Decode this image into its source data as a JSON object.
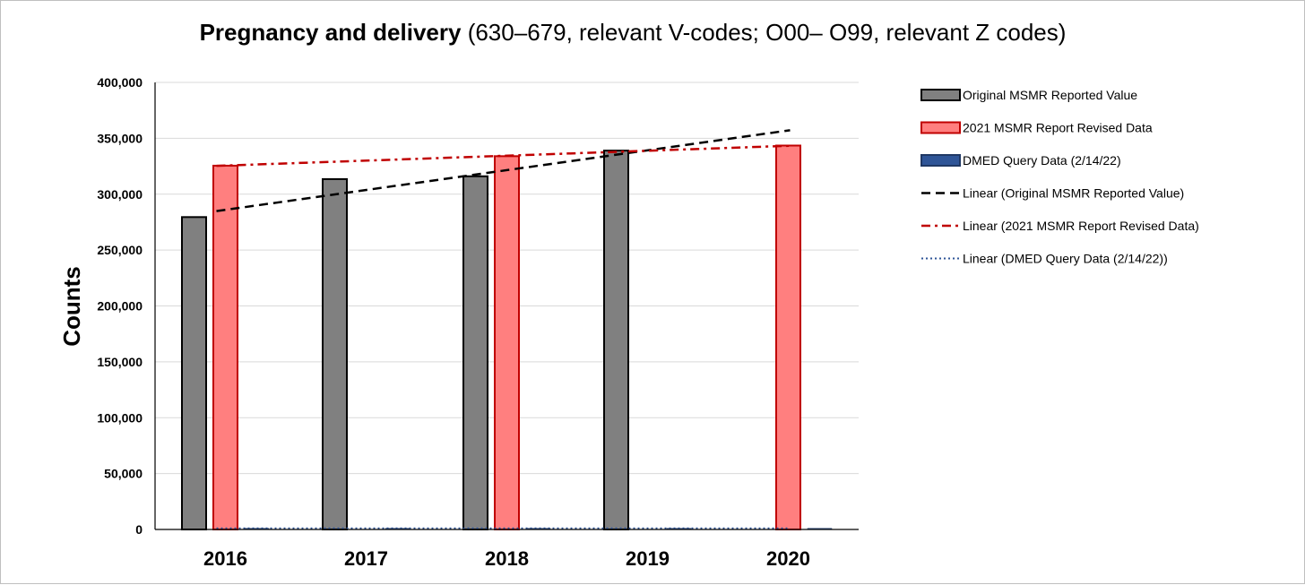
{
  "chart_data": {
    "type": "bar",
    "title_bold": "Pregnancy and delivery",
    "title_rest": " (630–679, relevant V-codes; O00– O99, relevant Z codes)",
    "ylabel": "Counts",
    "xlabel": "",
    "categories": [
      "2016",
      "2017",
      "2018",
      "2019",
      "2020"
    ],
    "ylim": [
      0,
      400000
    ],
    "yticks": [
      0,
      50000,
      100000,
      150000,
      200000,
      250000,
      300000,
      350000,
      400000
    ],
    "ytick_labels": [
      "0",
      "50,000",
      "100,000",
      "150,000",
      "200,000",
      "250,000",
      "300,000",
      "350,000",
      "400,000"
    ],
    "grid": true,
    "legend_position": "right",
    "series": [
      {
        "name": "Original MSMR Reported Value",
        "values": [
          279500,
          313500,
          316000,
          339000,
          null
        ],
        "color": "#808080",
        "edge": "#000000"
      },
      {
        "name": "2021 MSMR Report Revised Data",
        "values": [
          325500,
          null,
          334000,
          null,
          343500
        ],
        "color": "#ff7f7f",
        "edge": "#c00000"
      },
      {
        "name": "DMED Query Data (2/14/22)",
        "values": [
          1000,
          1000,
          1000,
          1000,
          1000
        ],
        "color": "#2f5597",
        "edge": "#1f3864"
      }
    ],
    "trendlines": [
      {
        "name": "Linear (Original MSMR Reported Value)",
        "of": "Original MSMR Reported Value",
        "style": "dash",
        "color": "#000000"
      },
      {
        "name": "Linear (2021 MSMR Report Revised Data)",
        "of": "2021 MSMR Report Revised Data",
        "style": "dashdot",
        "color": "#c00000"
      },
      {
        "name": "Linear (DMED Query Data (2/14/22))",
        "of": "DMED Query Data (2/14/22)",
        "style": "dot",
        "color": "#2f5597"
      }
    ]
  }
}
